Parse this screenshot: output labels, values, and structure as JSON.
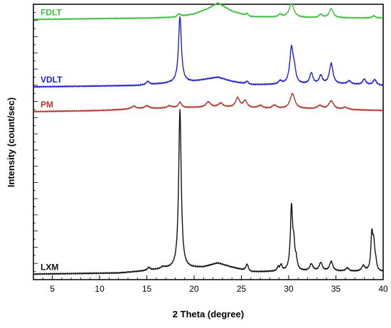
{
  "chart_data": {
    "type": "line",
    "title": "",
    "xlabel": "2 Theta (degree)",
    "ylabel": "Intensity (count/sec)",
    "xlim": [
      3,
      40
    ],
    "xticks": [
      5,
      10,
      15,
      20,
      25,
      30,
      35,
      40
    ],
    "xtick_labels": [
      "5",
      "10",
      "15",
      "20",
      "25",
      "30",
      "35",
      "40"
    ],
    "y_tick_labels_shown": false,
    "grid": false,
    "series": [
      {
        "name": "FDLT",
        "color": "#3fbf3f",
        "offset": 0.945,
        "base": [
          [
            3,
            0
          ],
          [
            15,
            0.005
          ],
          [
            18,
            0.008
          ],
          [
            20,
            0.02
          ],
          [
            21.5,
            0.04
          ],
          [
            22.5,
            0.06
          ],
          [
            24,
            0.03
          ],
          [
            26,
            0.01
          ],
          [
            29,
            0.008
          ],
          [
            33,
            0.006
          ],
          [
            40,
            0.005
          ]
        ],
        "peaks": [
          [
            18.4,
            0.01,
            0.2
          ],
          [
            25.6,
            0.008,
            0.15
          ],
          [
            29.1,
            0.01,
            0.2
          ],
          [
            30.3,
            0.05,
            0.3
          ],
          [
            33.4,
            0.012,
            0.2
          ],
          [
            34.5,
            0.033,
            0.25
          ],
          [
            39,
            0.008,
            0.2
          ]
        ]
      },
      {
        "name": "VDLT",
        "color": "#2020d0",
        "offset": 0.7,
        "base": [
          [
            3,
            0
          ],
          [
            14,
            0.005
          ],
          [
            18,
            0.015
          ],
          [
            20,
            0.02
          ],
          [
            22.5,
            0.035
          ],
          [
            24,
            0.02
          ],
          [
            26,
            0.008
          ],
          [
            30,
            0.008
          ],
          [
            36,
            0.01
          ],
          [
            40,
            0.005
          ]
        ],
        "peaks": [
          [
            15.1,
            0.012,
            0.2
          ],
          [
            18.5,
            0.24,
            0.18
          ],
          [
            25.6,
            0.01,
            0.15
          ],
          [
            29.1,
            0.012,
            0.2
          ],
          [
            30.3,
            0.13,
            0.22
          ],
          [
            30.6,
            0.04,
            0.18
          ],
          [
            32.4,
            0.04,
            0.2
          ],
          [
            33.4,
            0.03,
            0.2
          ],
          [
            34.5,
            0.075,
            0.22
          ],
          [
            36.4,
            0.012,
            0.2
          ],
          [
            38,
            0.02,
            0.2
          ],
          [
            39.1,
            0.02,
            0.2
          ]
        ]
      },
      {
        "name": "PM",
        "color": "#b03a2e",
        "offset": 0.61,
        "base": [
          [
            3,
            0
          ],
          [
            10,
            0.004
          ],
          [
            14,
            0.01
          ],
          [
            20,
            0.015
          ],
          [
            24,
            0.015
          ],
          [
            28,
            0.01
          ],
          [
            32,
            0.01
          ],
          [
            40,
            0.004
          ]
        ],
        "peaks": [
          [
            13.6,
            0.01,
            0.3
          ],
          [
            15.0,
            0.01,
            0.3
          ],
          [
            17.4,
            0.008,
            0.3
          ],
          [
            18.5,
            0.02,
            0.2
          ],
          [
            21.5,
            0.02,
            0.3
          ],
          [
            22.8,
            0.015,
            0.3
          ],
          [
            24.6,
            0.035,
            0.25
          ],
          [
            25.4,
            0.025,
            0.25
          ],
          [
            27.0,
            0.01,
            0.3
          ],
          [
            28.5,
            0.012,
            0.3
          ],
          [
            30.4,
            0.055,
            0.3
          ],
          [
            33.3,
            0.012,
            0.3
          ],
          [
            34.5,
            0.03,
            0.3
          ],
          [
            36,
            0.008,
            0.3
          ]
        ]
      },
      {
        "name": "LXM",
        "color": "#111111",
        "offset": 0.02,
        "base": [
          [
            3,
            0
          ],
          [
            12,
            0.004
          ],
          [
            15,
            0.012
          ],
          [
            17,
            0.02
          ],
          [
            19,
            0.02
          ],
          [
            21,
            0.025
          ],
          [
            22.5,
            0.04
          ],
          [
            24,
            0.025
          ],
          [
            26,
            0.008
          ],
          [
            30,
            0.01
          ],
          [
            35,
            0.01
          ],
          [
            40,
            0.008
          ]
        ],
        "peaks": [
          [
            15.2,
            0.01,
            0.2
          ],
          [
            16.7,
            0.006,
            0.2
          ],
          [
            18.5,
            0.58,
            0.16
          ],
          [
            25.6,
            0.025,
            0.15
          ],
          [
            28.9,
            0.015,
            0.12
          ],
          [
            29.2,
            0.022,
            0.12
          ],
          [
            30.3,
            0.23,
            0.14
          ],
          [
            30.55,
            0.08,
            0.12
          ],
          [
            30.8,
            0.035,
            0.12
          ],
          [
            32.4,
            0.025,
            0.2
          ],
          [
            33.4,
            0.03,
            0.2
          ],
          [
            34.5,
            0.035,
            0.2
          ],
          [
            36.2,
            0.012,
            0.2
          ],
          [
            37.9,
            0.02,
            0.2
          ],
          [
            38.8,
            0.13,
            0.12
          ],
          [
            39.0,
            0.09,
            0.12
          ],
          [
            39.2,
            0.03,
            0.12
          ]
        ]
      }
    ]
  }
}
